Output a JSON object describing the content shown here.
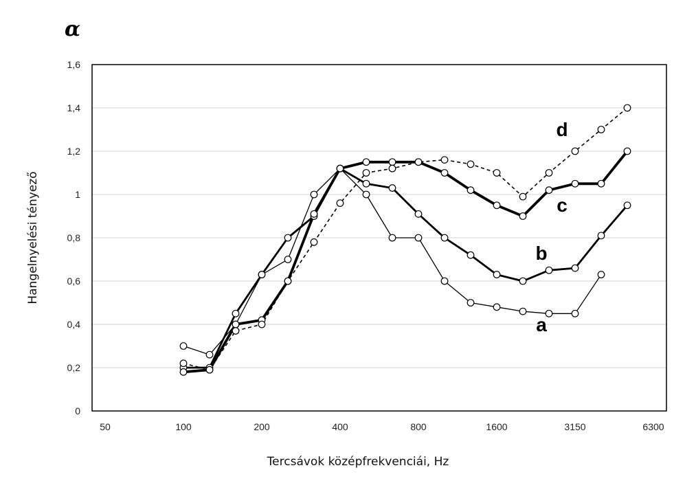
{
  "figure": {
    "symbol": "α"
  },
  "chart_data": {
    "type": "line",
    "xlabel": "Tercsávok középfrekvenciái, Hz",
    "ylabel": "Hangelnyelési tényező",
    "ylim": [
      0,
      1.6
    ],
    "y_ticks": [
      "0",
      "0,2",
      "0,4",
      "0,6",
      "0,8",
      "1",
      "1,2",
      "1,4",
      "1,6"
    ],
    "x": [
      "50",
      "63",
      "80",
      "100",
      "125",
      "160",
      "200",
      "250",
      "315",
      "400",
      "500",
      "630",
      "800",
      "1000",
      "1250",
      "1600",
      "2000",
      "2500",
      "3150",
      "4000",
      "5000",
      "6300"
    ],
    "x_tick_labels": [
      "50",
      "100",
      "200",
      "400",
      "800",
      "1600",
      "3150",
      "6300"
    ],
    "x_tick_label_indices": [
      0,
      3,
      6,
      9,
      12,
      15,
      18,
      21
    ],
    "grid": "horizontal",
    "legend": "none",
    "series": [
      {
        "name": "a",
        "style": "thin",
        "values": [
          null,
          null,
          null,
          0.3,
          0.26,
          0.4,
          0.63,
          0.7,
          1.0,
          1.12,
          1.0,
          0.8,
          0.8,
          0.6,
          0.5,
          0.48,
          0.46,
          0.45,
          0.45,
          0.63,
          null,
          null
        ]
      },
      {
        "name": "b",
        "style": "medium",
        "values": [
          null,
          null,
          null,
          0.2,
          0.2,
          0.45,
          0.63,
          0.8,
          0.9,
          1.12,
          1.05,
          1.03,
          0.91,
          0.8,
          0.72,
          0.63,
          0.6,
          0.65,
          0.66,
          0.81,
          0.95,
          null
        ]
      },
      {
        "name": "c",
        "style": "thick",
        "values": [
          null,
          null,
          null,
          0.18,
          0.19,
          0.4,
          0.42,
          0.6,
          0.91,
          1.12,
          1.15,
          1.15,
          1.15,
          1.1,
          1.02,
          0.95,
          0.9,
          1.02,
          1.05,
          1.05,
          1.2,
          null
        ]
      },
      {
        "name": "d",
        "style": "dashed",
        "values": [
          null,
          null,
          null,
          0.22,
          0.19,
          0.37,
          0.4,
          0.6,
          0.78,
          0.96,
          1.1,
          1.12,
          1.15,
          1.16,
          1.14,
          1.1,
          0.99,
          1.1,
          1.2,
          1.3,
          1.4,
          null
        ]
      }
    ]
  }
}
